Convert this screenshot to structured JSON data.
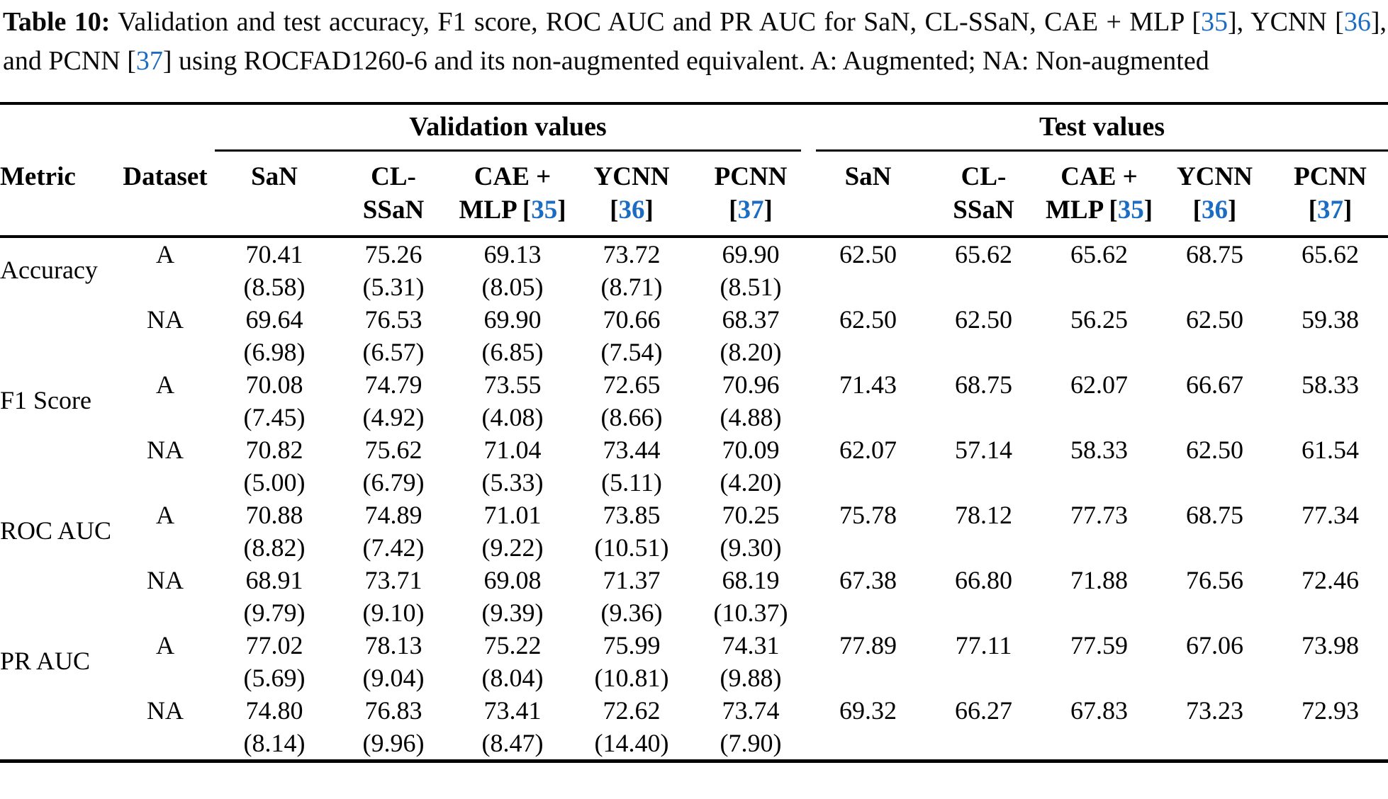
{
  "page": {
    "background": "#ffffff",
    "text_color": "#000000",
    "citation_color": "#1c6dc2"
  },
  "caption": {
    "parts": [
      {
        "style": "bold",
        "text": "Table 10:"
      },
      {
        "style": "text",
        "text": " Validation and test accuracy, F1 score, ROC AUC and PR AUC for SaN, CL-SSaN, CAE + MLP ["
      },
      {
        "style": "cite",
        "text": "35"
      },
      {
        "style": "text",
        "text": "], YCNN ["
      },
      {
        "style": "cite",
        "text": "36"
      },
      {
        "style": "text",
        "text": "], and PCNN ["
      },
      {
        "style": "cite",
        "text": "37"
      },
      {
        "style": "text",
        "text": "] using ROCFAD1260-6 and its non-augmented equivalent. A: Augmented; NA: Non-augmented"
      }
    ]
  },
  "table": {
    "group_headers": {
      "validation": "Validation values",
      "test": "Test values"
    },
    "corner_headers": [
      "Metric",
      "Dataset"
    ],
    "model_headers": [
      {
        "name": "san",
        "line1": "SaN",
        "line2": []
      },
      {
        "name": "cl-ssan",
        "line1": "CL-",
        "line2": [
          {
            "style": "text",
            "text": "SSaN"
          }
        ]
      },
      {
        "name": "cae-mlp",
        "line1": "CAE +",
        "line2": [
          {
            "style": "text",
            "text": "MLP ["
          },
          {
            "style": "cite",
            "text": "35"
          },
          {
            "style": "text",
            "text": "]"
          }
        ]
      },
      {
        "name": "ycnn",
        "line1": "YCNN",
        "line2": [
          {
            "style": "text",
            "text": "["
          },
          {
            "style": "cite",
            "text": "36"
          },
          {
            "style": "text",
            "text": "]"
          }
        ]
      },
      {
        "name": "pcnn",
        "line1": "PCNN",
        "line2": [
          {
            "style": "text",
            "text": "["
          },
          {
            "style": "cite",
            "text": "37"
          },
          {
            "style": "text",
            "text": "]"
          }
        ]
      }
    ],
    "metrics": [
      {
        "metric": "Accuracy",
        "rows": [
          {
            "dataset": "A",
            "validation": [
              "70.41",
              "75.26",
              "69.13",
              "73.72",
              "69.90"
            ],
            "validation_std": [
              "(8.58)",
              "(5.31)",
              "(8.05)",
              "(8.71)",
              "(8.51)"
            ],
            "test": [
              "62.50",
              "65.62",
              "65.62",
              "68.75",
              "65.62"
            ]
          },
          {
            "dataset": "NA",
            "validation": [
              "69.64",
              "76.53",
              "69.90",
              "70.66",
              "68.37"
            ],
            "validation_std": [
              "(6.98)",
              "(6.57)",
              "(6.85)",
              "(7.54)",
              "(8.20)"
            ],
            "test": [
              "62.50",
              "62.50",
              "56.25",
              "62.50",
              "59.38"
            ]
          }
        ]
      },
      {
        "metric": "F1 Score",
        "rows": [
          {
            "dataset": "A",
            "validation": [
              "70.08",
              "74.79",
              "73.55",
              "72.65",
              "70.96"
            ],
            "validation_std": [
              "(7.45)",
              "(4.92)",
              "(4.08)",
              "(8.66)",
              "(4.88)"
            ],
            "test": [
              "71.43",
              "68.75",
              "62.07",
              "66.67",
              "58.33"
            ]
          },
          {
            "dataset": "NA",
            "validation": [
              "70.82",
              "75.62",
              "71.04",
              "73.44",
              "70.09"
            ],
            "validation_std": [
              "(5.00)",
              "(6.79)",
              "(5.33)",
              "(5.11)",
              "(4.20)"
            ],
            "test": [
              "62.07",
              "57.14",
              "58.33",
              "62.50",
              "61.54"
            ]
          }
        ]
      },
      {
        "metric": "ROC AUC",
        "rows": [
          {
            "dataset": "A",
            "validation": [
              "70.88",
              "74.89",
              "71.01",
              "73.85",
              "70.25"
            ],
            "validation_std": [
              "(8.82)",
              "(7.42)",
              "(9.22)",
              "(10.51)",
              "(9.30)"
            ],
            "test": [
              "75.78",
              "78.12",
              "77.73",
              "68.75",
              "77.34"
            ]
          },
          {
            "dataset": "NA",
            "validation": [
              "68.91",
              "73.71",
              "69.08",
              "71.37",
              "68.19"
            ],
            "validation_std": [
              "(9.79)",
              "(9.10)",
              "(9.39)",
              "(9.36)",
              "(10.37)"
            ],
            "test": [
              "67.38",
              "66.80",
              "71.88",
              "76.56",
              "72.46"
            ]
          }
        ]
      },
      {
        "metric": "PR AUC",
        "rows": [
          {
            "dataset": "A",
            "validation": [
              "77.02",
              "78.13",
              "75.22",
              "75.99",
              "74.31"
            ],
            "validation_std": [
              "(5.69)",
              "(9.04)",
              "(8.04)",
              "(10.81)",
              "(9.88)"
            ],
            "test": [
              "77.89",
              "77.11",
              "77.59",
              "67.06",
              "73.98"
            ]
          },
          {
            "dataset": "NA",
            "validation": [
              "74.80",
              "76.83",
              "73.41",
              "72.62",
              "73.74"
            ],
            "validation_std": [
              "(8.14)",
              "(9.96)",
              "(8.47)",
              "(14.40)",
              "(7.90)"
            ],
            "test": [
              "69.32",
              "66.27",
              "67.83",
              "73.23",
              "72.93"
            ]
          }
        ]
      }
    ]
  }
}
